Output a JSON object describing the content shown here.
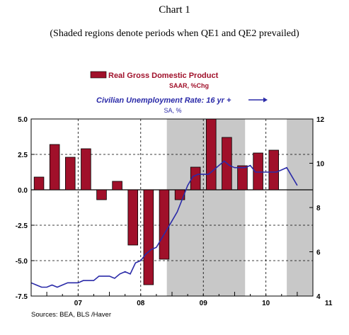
{
  "header": {
    "title": "Chart 1",
    "subtitle": "(Shaded regions denote periods when QE1 and QE2 prevailed)"
  },
  "footer": {
    "source": "Sources:  BEA,  BLS /Haver"
  },
  "colors": {
    "bar": "#a0102a",
    "line": "#2a2aa8",
    "shade": "#c8c8c8",
    "legend_gdp_text": "#a0102a",
    "legend_unemp_text": "#2a2aa8"
  },
  "chart_data": {
    "type": "bar+line",
    "legend": [
      {
        "name": "Real Gross Domestic Product",
        "sub": "SAAR, %Chg",
        "kind": "bar"
      },
      {
        "name": "Civilian Unemployment Rate: 16 yr +",
        "sub": "SA, %",
        "kind": "line"
      }
    ],
    "x_tick_labels": [
      "07",
      "08",
      "09",
      "10",
      "11"
    ],
    "x_range": [
      2006.75,
      2011.25
    ],
    "left_axis": {
      "ticks": [
        "5.0",
        "2.5",
        "0.0",
        "-2.5",
        "-5.0",
        "-7.5"
      ],
      "ylim": [
        -7.5,
        5.0
      ]
    },
    "right_axis": {
      "ticks": [
        "12",
        "10",
        "8",
        "6",
        "4"
      ],
      "ylim": [
        4,
        12
      ]
    },
    "shaded_periods": [
      [
        2008.917,
        2010.167
      ],
      [
        2010.833,
        2011.25
      ]
    ],
    "gdp_bars": {
      "quarters": [
        "2006Q4",
        "2007Q1",
        "2007Q2",
        "2007Q3",
        "2007Q4",
        "2008Q1",
        "2008Q2",
        "2008Q3",
        "2008Q4",
        "2009Q1",
        "2009Q2",
        "2009Q3",
        "2009Q4",
        "2010Q1",
        "2010Q2",
        "2010Q3",
        "2010Q4"
      ],
      "x": [
        2006.875,
        2007.125,
        2007.375,
        2007.625,
        2007.875,
        2008.125,
        2008.375,
        2008.625,
        2008.875,
        2009.125,
        2009.375,
        2009.625,
        2009.875,
        2010.125,
        2010.375,
        2010.625,
        2010.875
      ],
      "values": [
        0.9,
        3.2,
        2.3,
        2.9,
        -0.7,
        0.6,
        -3.9,
        -6.7,
        -4.9,
        -0.7,
        1.6,
        5.0,
        3.7,
        1.7,
        2.6,
        2.8,
        0.0
      ]
    },
    "unemployment_line": {
      "x": [
        2006.75,
        2006.833,
        2006.917,
        2007.0,
        2007.083,
        2007.167,
        2007.25,
        2007.333,
        2007.417,
        2007.5,
        2007.583,
        2007.667,
        2007.75,
        2007.833,
        2007.917,
        2008.0,
        2008.083,
        2008.167,
        2008.25,
        2008.333,
        2008.417,
        2008.5,
        2008.583,
        2008.667,
        2008.75,
        2008.833,
        2008.917,
        2009.0,
        2009.083,
        2009.167,
        2009.25,
        2009.333,
        2009.417,
        2009.5,
        2009.583,
        2009.667,
        2009.75,
        2009.833,
        2009.917,
        2010.0,
        2010.083,
        2010.167,
        2010.25,
        2010.333,
        2010.417,
        2010.5,
        2010.583,
        2010.667,
        2010.75,
        2010.833,
        2010.917,
        2011.0
      ],
      "values": [
        4.6,
        4.5,
        4.4,
        4.4,
        4.5,
        4.4,
        4.5,
        4.6,
        4.6,
        4.6,
        4.7,
        4.7,
        4.7,
        4.9,
        4.9,
        4.9,
        4.8,
        5.0,
        5.1,
        5.0,
        5.5,
        5.6,
        5.9,
        6.1,
        6.2,
        6.6,
        7.0,
        7.4,
        7.8,
        8.4,
        9.0,
        9.4,
        9.5,
        9.5,
        9.5,
        9.7,
        9.9,
        10.1,
        9.9,
        9.8,
        9.8,
        9.8,
        9.9,
        9.6,
        9.6,
        9.6,
        9.6,
        9.6,
        9.7,
        9.8,
        9.4,
        9.0
      ]
    }
  }
}
